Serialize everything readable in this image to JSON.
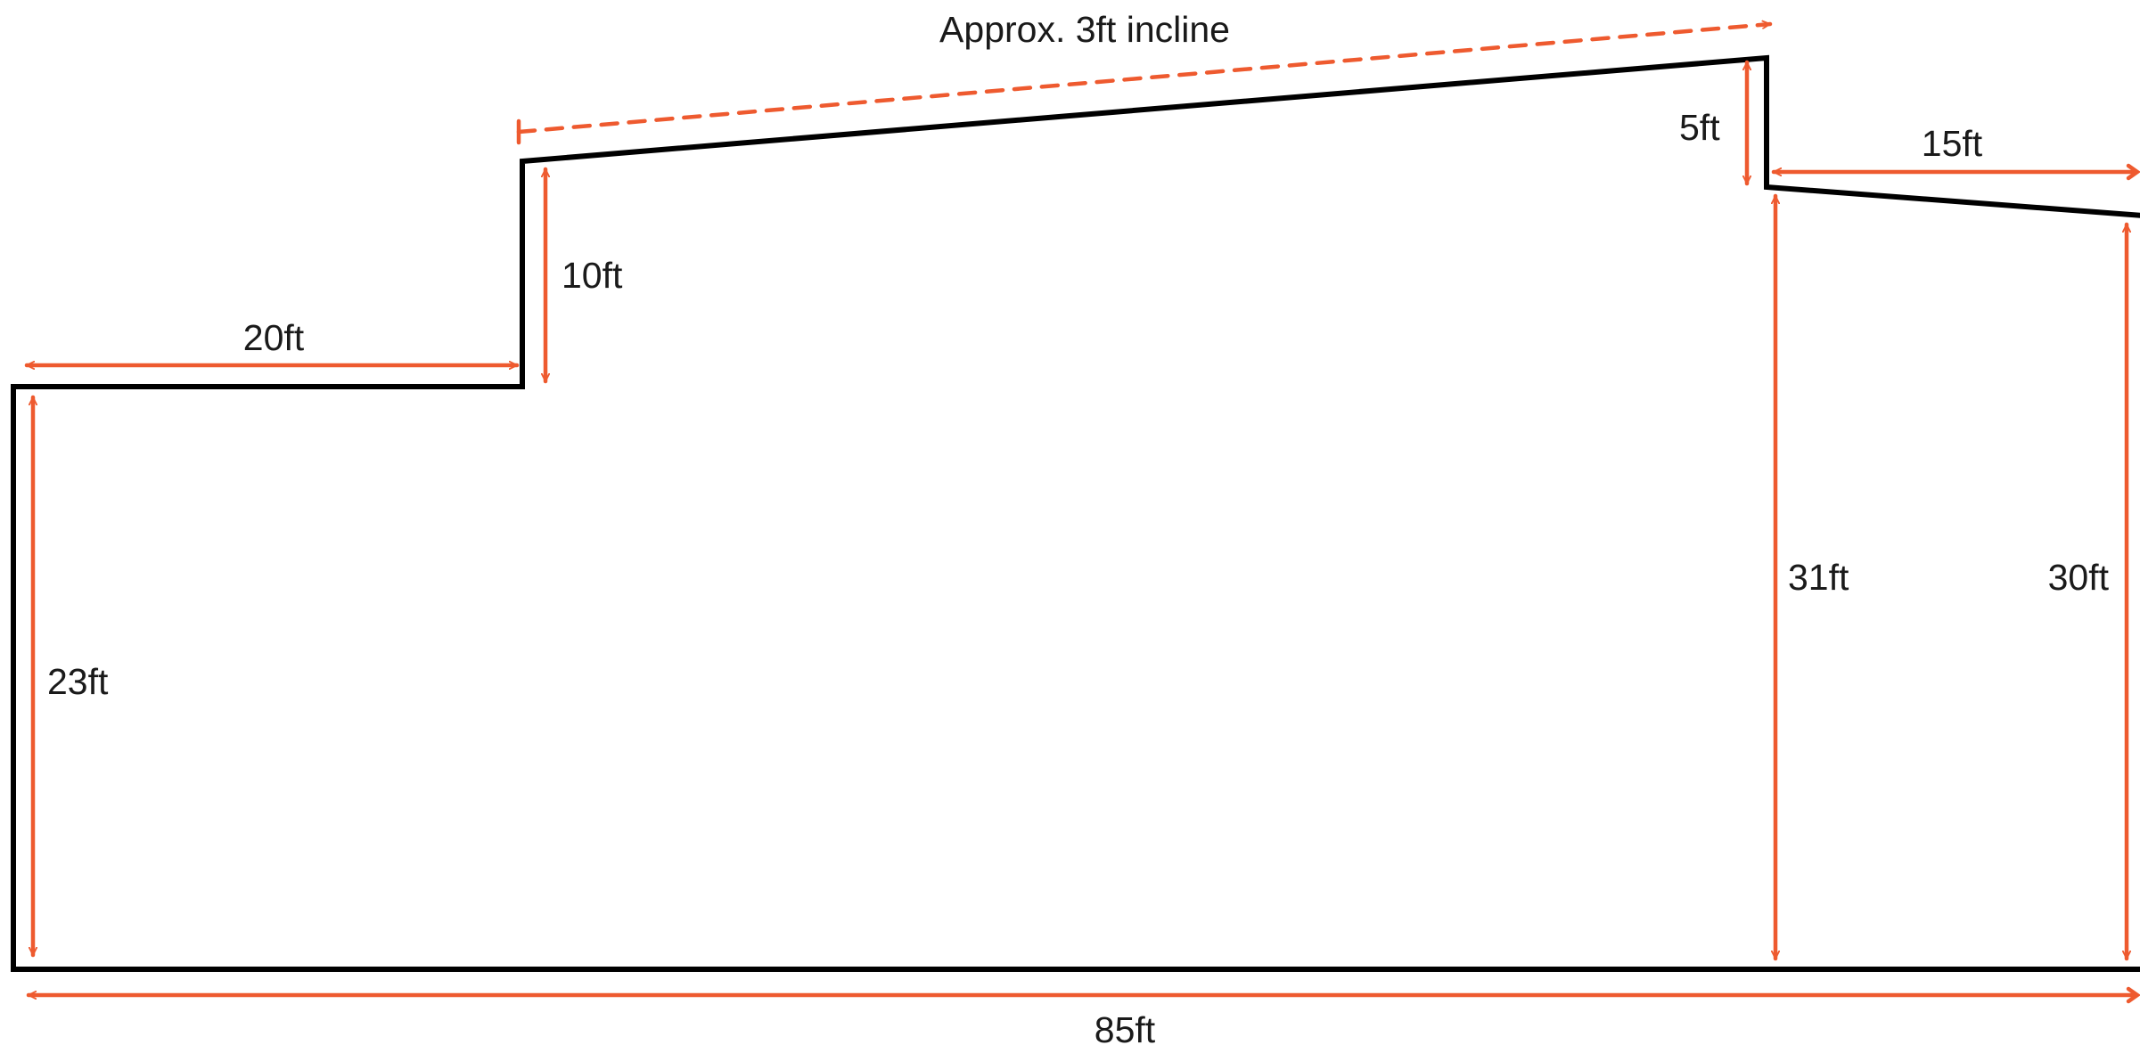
{
  "colors": {
    "outline": "#000000",
    "dimension": "#ee5a2f",
    "text": "#1a1a1a",
    "background": "#ffffff"
  },
  "labels": {
    "incline": "Approx. 3ft incline",
    "left_step_width": "20ft",
    "left_height": "23ft",
    "step_rise": "10ft",
    "right_step_drop": "5ft",
    "right_section_width": "15ft",
    "mid_height": "31ft",
    "right_height": "30ft",
    "total_width": "85ft"
  }
}
